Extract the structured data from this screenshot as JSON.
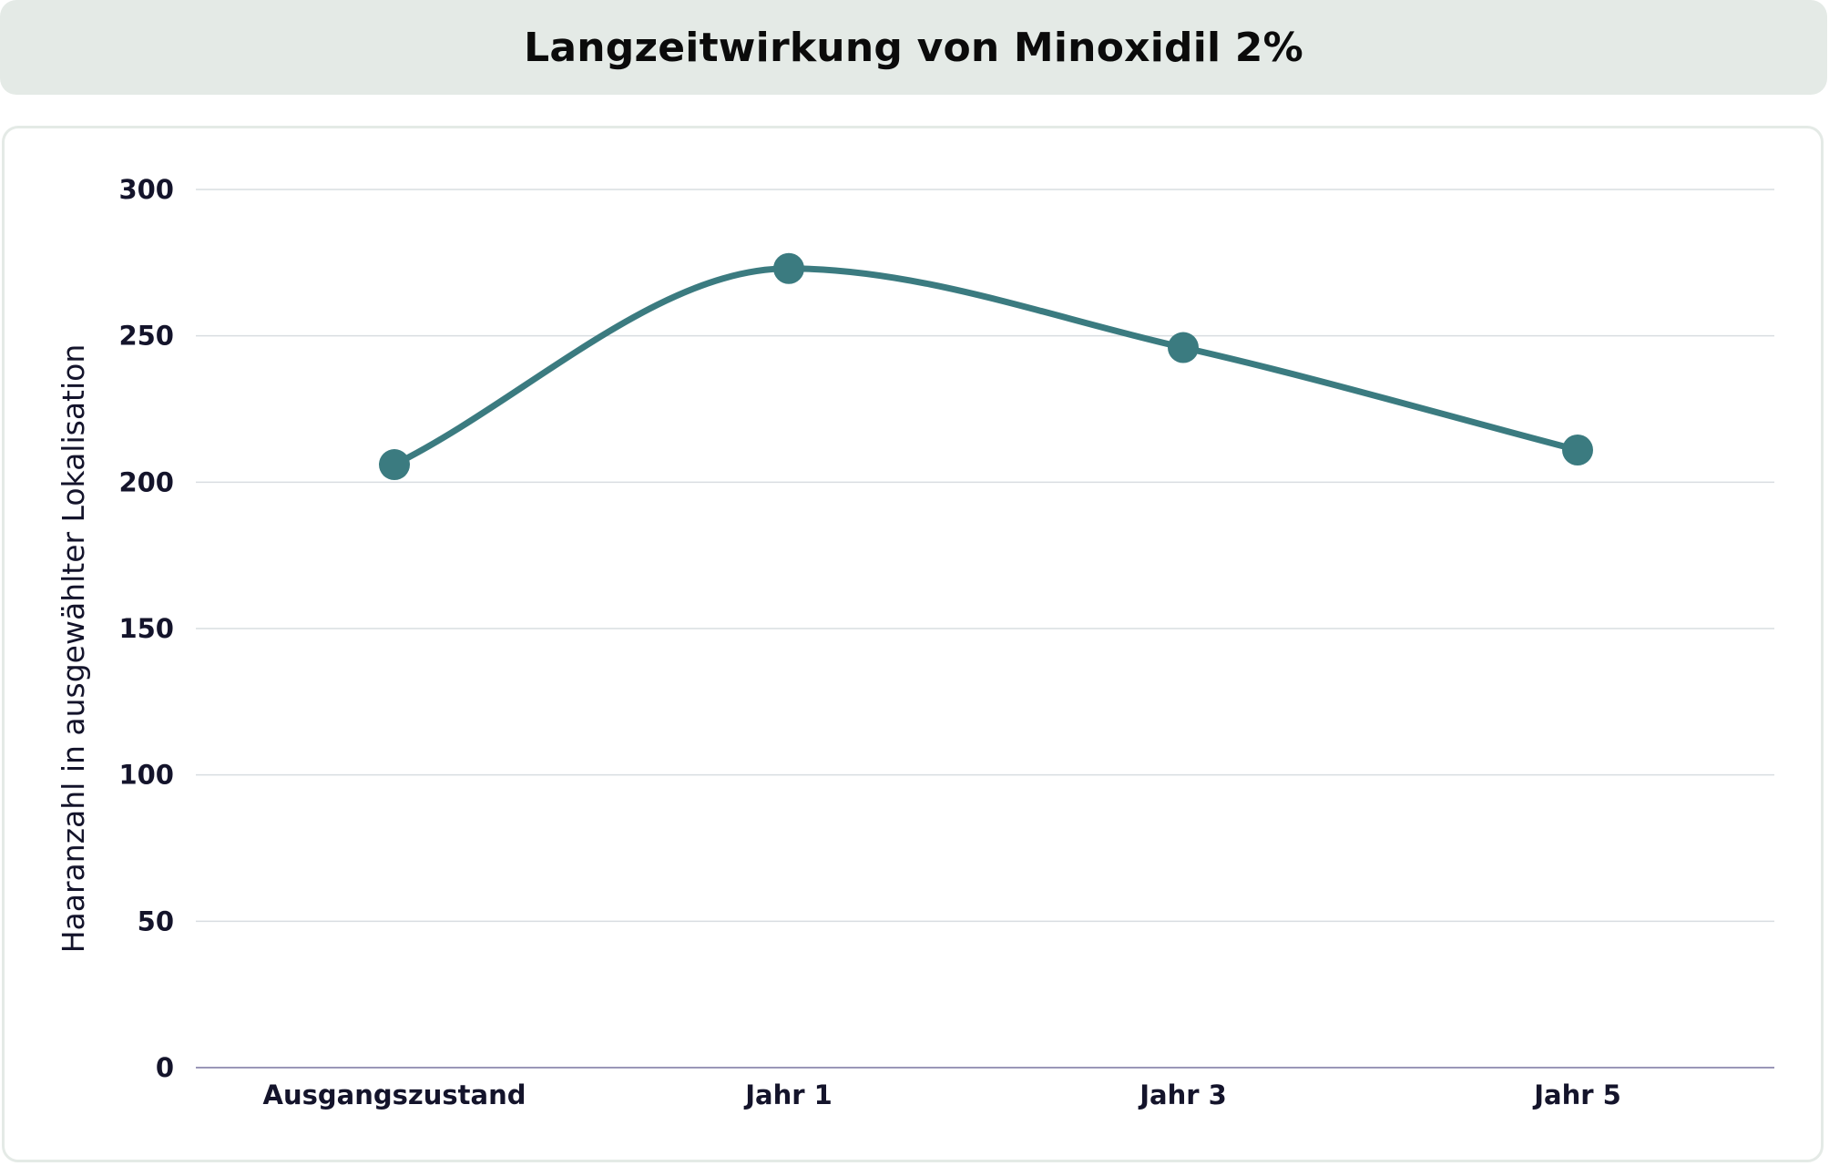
{
  "chart_data": {
    "type": "line",
    "title": "Langzeitwirkung von Minoxidil 2%",
    "xlabel": "",
    "ylabel": "Haaranzahl in ausgewählter Lokalisation",
    "categories": [
      "Ausgangszustand",
      "Jahr 1",
      "Jahr 3",
      "Jahr 5"
    ],
    "series": [
      {
        "values": [
          206,
          273,
          246,
          211
        ]
      }
    ],
    "ylim": [
      0,
      300
    ],
    "yticks": [
      "0",
      "50",
      "100",
      "150",
      "200",
      "250",
      "300"
    ],
    "grid": true,
    "legend": "none",
    "line_color": "#3b7b80",
    "grid_color": "#d9dde1",
    "axis_color": "#9a97b8"
  }
}
